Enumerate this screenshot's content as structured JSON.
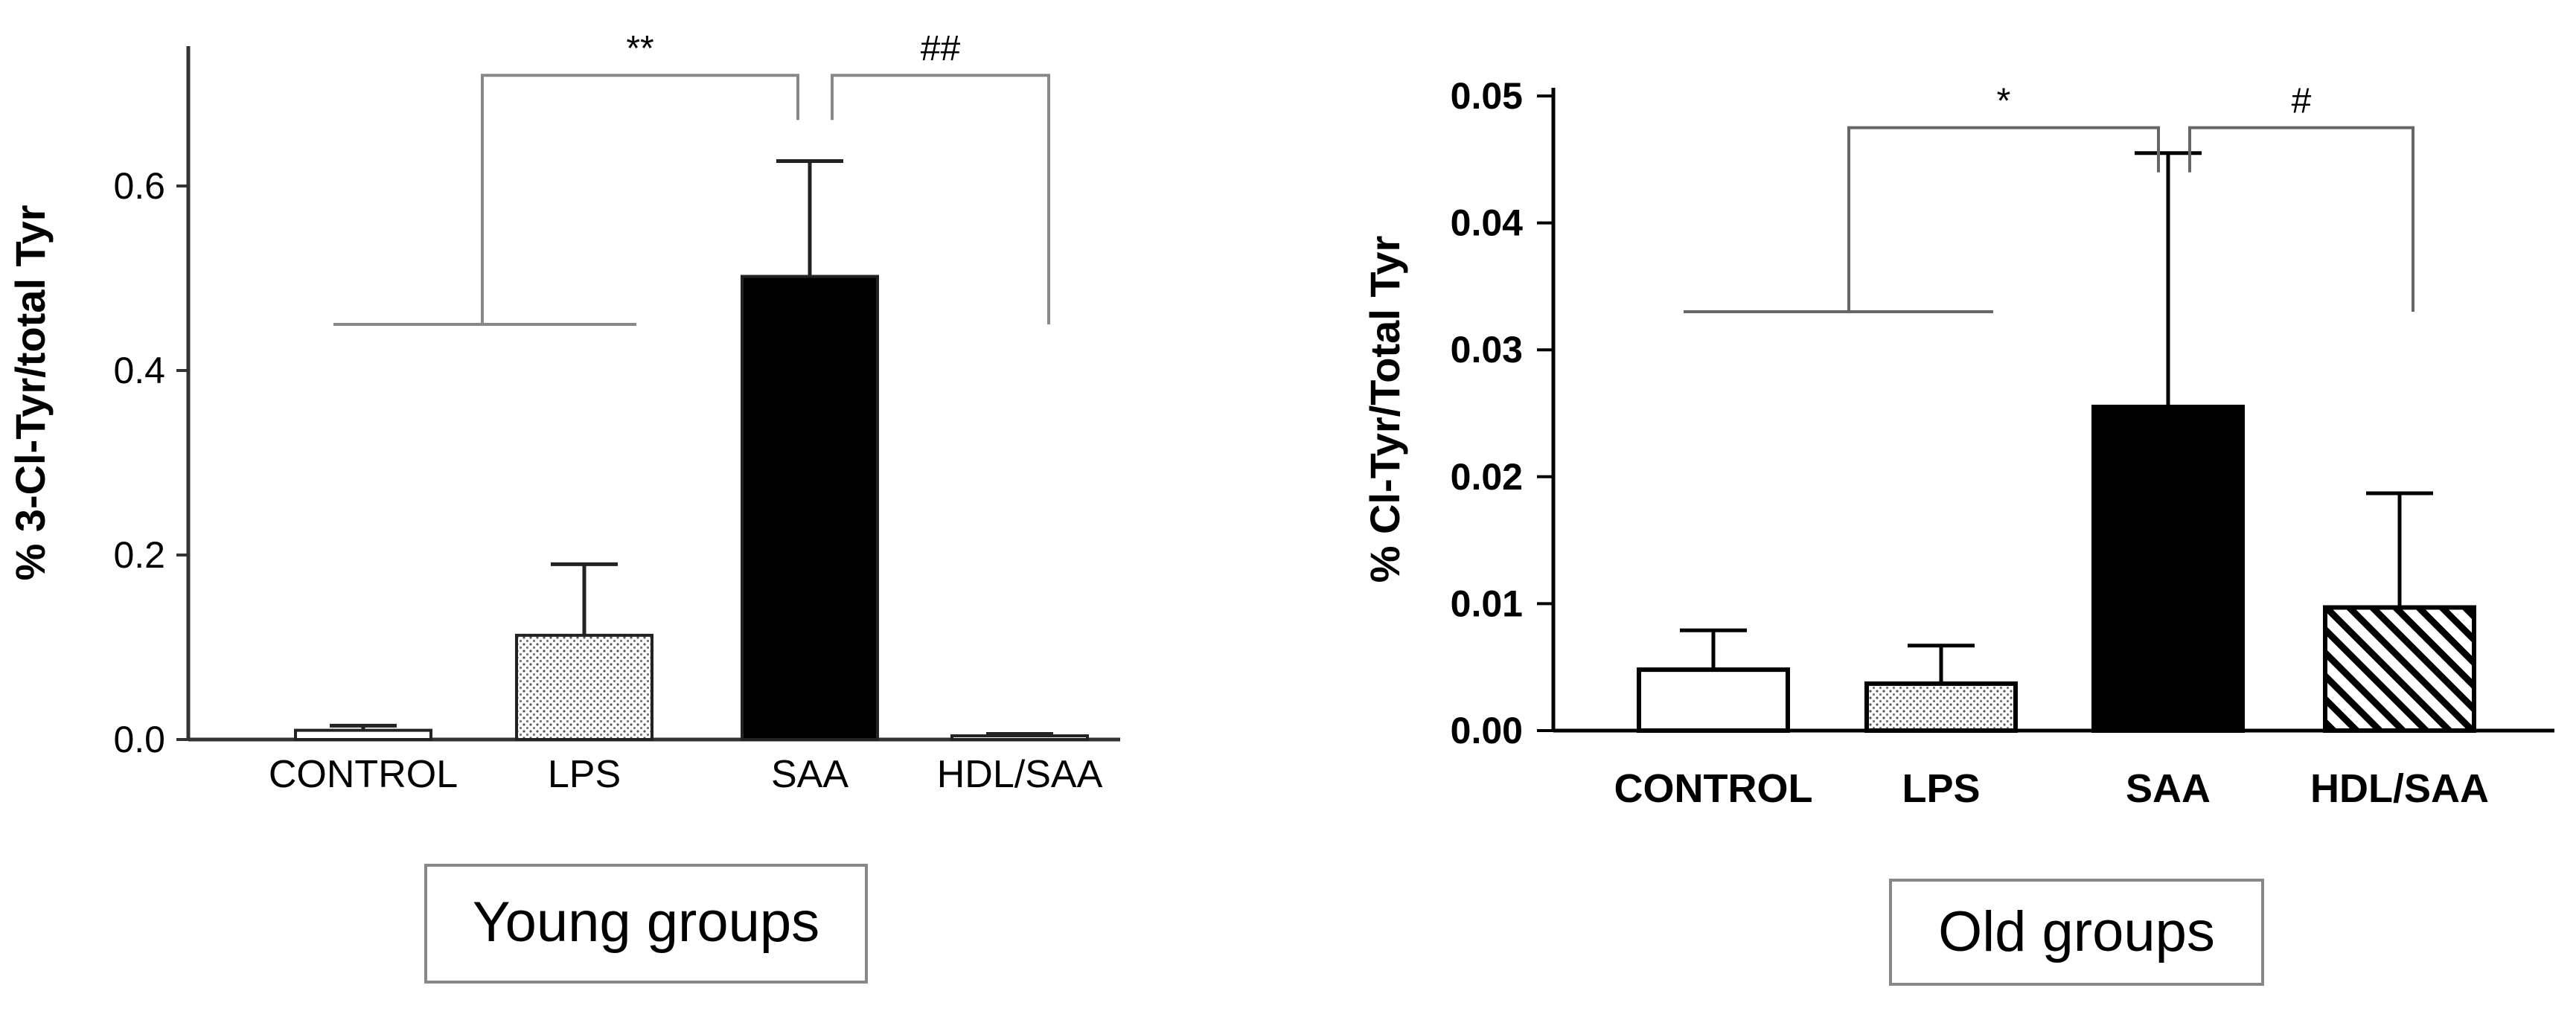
{
  "chart_data": [
    {
      "type": "bar",
      "categories": [
        "CONTROL",
        "LPS",
        "SAA",
        "HDL/SAA"
      ],
      "series": [
        {
          "values": [
            0.01,
            0.113,
            0.502,
            0.004
          ],
          "errors": [
            0.005,
            0.077,
            0.125,
            0.002
          ]
        }
      ],
      "patterns": [
        "white",
        "dotted",
        "black",
        "white"
      ],
      "title": "",
      "xlabel": "",
      "ylabel": "% 3-Cl-Tyr/total Tyr",
      "ylim": [
        0,
        0.75
      ],
      "yticks": [
        0.0,
        0.2,
        0.4,
        0.6
      ],
      "ytick_labels": [
        "0.0",
        "0.2",
        "0.4",
        "0.6"
      ],
      "caption": "Young groups",
      "significance": [
        {
          "label": "**",
          "from": [
            "CONTROL",
            "LPS"
          ],
          "to": "SAA",
          "left_level": 0.45,
          "bracket_level": 0.72
        },
        {
          "label": "##",
          "from": [
            "HDL/SAA"
          ],
          "to": "SAA",
          "right_level": 0.45,
          "bracket_level": 0.72
        }
      ],
      "grid": false
    },
    {
      "type": "bar",
      "categories": [
        "CONTROL",
        "LPS",
        "SAA",
        "HDL/SAA"
      ],
      "series": [
        {
          "values": [
            0.0048,
            0.0037,
            0.0255,
            0.0097
          ],
          "errors": [
            0.0031,
            0.003,
            0.02,
            0.009
          ]
        }
      ],
      "patterns": [
        "white",
        "dotted",
        "black",
        "hatched"
      ],
      "title": "",
      "xlabel": "",
      "ylabel": "% Cl-Tyr/Total Tyr",
      "ylim": [
        0,
        0.05
      ],
      "yticks": [
        0.0,
        0.01,
        0.02,
        0.03,
        0.04,
        0.05
      ],
      "ytick_labels": [
        "0.00",
        "0.01",
        "0.02",
        "0.03",
        "0.04",
        "0.05"
      ],
      "caption": "Old groups",
      "significance": [
        {
          "label": "*",
          "from": [
            "CONTROL",
            "LPS"
          ],
          "to": "SAA",
          "left_level": 0.033,
          "bracket_level": 0.0475
        },
        {
          "label": "#",
          "from": [
            "HDL/SAA"
          ],
          "to": "SAA",
          "right_level": 0.033,
          "bracket_level": 0.0475
        }
      ],
      "grid": false
    }
  ]
}
